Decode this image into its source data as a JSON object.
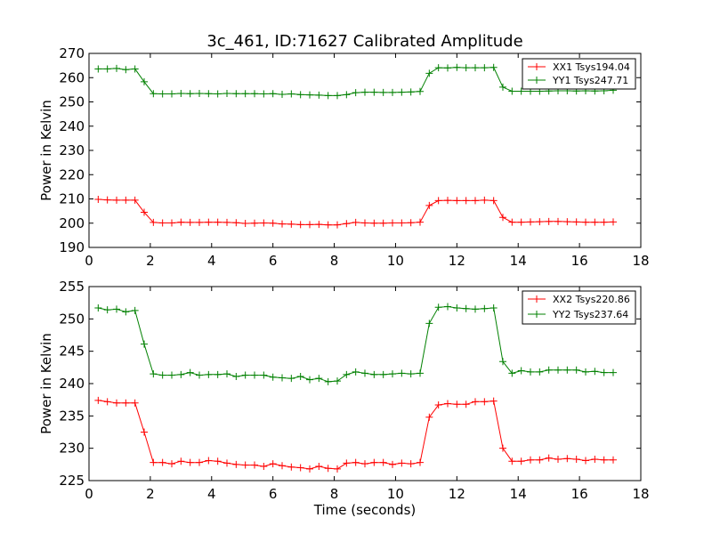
{
  "figure": {
    "title": "3c_461, ID:71627 Calibrated Amplitude"
  },
  "chart_data": [
    {
      "type": "line",
      "title": "3c_461, ID:71627 Calibrated Amplitude",
      "xlabel": "",
      "ylabel": "Power in Kelvin",
      "xlim": [
        0,
        18
      ],
      "ylim": [
        190,
        270
      ],
      "xticks": [
        "0",
        "2",
        "4",
        "6",
        "8",
        "10",
        "12",
        "14",
        "16",
        "18"
      ],
      "yticks": [
        "190",
        "200",
        "210",
        "220",
        "230",
        "240",
        "250",
        "260",
        "270"
      ],
      "grid": false,
      "legend_position": "top-right",
      "x": [
        0.3,
        0.6,
        0.9,
        1.2,
        1.5,
        1.8,
        2.1,
        2.4,
        2.7,
        3.0,
        3.3,
        3.6,
        3.9,
        4.2,
        4.5,
        4.8,
        5.1,
        5.4,
        5.7,
        6.0,
        6.3,
        6.6,
        6.9,
        7.2,
        7.5,
        7.8,
        8.1,
        8.4,
        8.7,
        9.0,
        9.3,
        9.6,
        9.9,
        10.2,
        10.5,
        10.8,
        11.1,
        11.4,
        11.7,
        12.0,
        12.3,
        12.6,
        12.9,
        13.2,
        13.5,
        13.8,
        14.1,
        14.4,
        14.7,
        15.0,
        15.3,
        15.6,
        15.9,
        16.2,
        16.5,
        16.8,
        17.1
      ],
      "series": [
        {
          "name": "XX1 Tsys194.04",
          "color": "#ff0000",
          "marker": "plus",
          "values": [
            209.8,
            209.6,
            209.5,
            209.5,
            209.5,
            204.5,
            200.3,
            200.1,
            200.1,
            200.4,
            200.3,
            200.3,
            200.4,
            200.4,
            200.3,
            200.2,
            199.9,
            200.0,
            200.1,
            200.0,
            199.7,
            199.6,
            199.4,
            199.4,
            199.5,
            199.3,
            199.3,
            199.8,
            200.3,
            200.1,
            200.0,
            200.0,
            200.1,
            200.1,
            200.2,
            200.4,
            207.3,
            209.3,
            209.4,
            209.3,
            209.3,
            209.3,
            209.5,
            209.3,
            202.4,
            200.4,
            200.4,
            200.5,
            200.6,
            200.7,
            200.7,
            200.6,
            200.5,
            200.4,
            200.4,
            200.4,
            200.5
          ]
        },
        {
          "name": "YY1 Tsys247.71",
          "color": "#008000",
          "marker": "plus",
          "values": [
            263.6,
            263.6,
            263.8,
            263.3,
            263.6,
            258.3,
            253.4,
            253.3,
            253.3,
            253.5,
            253.4,
            253.5,
            253.4,
            253.3,
            253.5,
            253.4,
            253.4,
            253.4,
            253.3,
            253.4,
            253.1,
            253.3,
            253.0,
            252.9,
            252.8,
            252.6,
            252.6,
            253.0,
            253.8,
            254.0,
            254.0,
            253.9,
            253.9,
            254.0,
            254.1,
            254.3,
            261.8,
            264.1,
            264.0,
            264.2,
            264.1,
            264.1,
            264.1,
            264.2,
            256.1,
            254.4,
            254.4,
            254.4,
            254.4,
            254.5,
            254.6,
            254.6,
            254.5,
            254.6,
            254.5,
            254.6,
            254.8
          ]
        }
      ]
    },
    {
      "type": "line",
      "title": "",
      "xlabel": "Time (seconds)",
      "ylabel": "Power in Kelvin",
      "xlim": [
        0,
        18
      ],
      "ylim": [
        225,
        255
      ],
      "xticks": [
        "0",
        "2",
        "4",
        "6",
        "8",
        "10",
        "12",
        "14",
        "16",
        "18"
      ],
      "yticks": [
        "225",
        "230",
        "235",
        "240",
        "245",
        "250",
        "255"
      ],
      "grid": false,
      "legend_position": "top-right",
      "x": [
        0.3,
        0.6,
        0.9,
        1.2,
        1.5,
        1.8,
        2.1,
        2.4,
        2.7,
        3.0,
        3.3,
        3.6,
        3.9,
        4.2,
        4.5,
        4.8,
        5.1,
        5.4,
        5.7,
        6.0,
        6.3,
        6.6,
        6.9,
        7.2,
        7.5,
        7.8,
        8.1,
        8.4,
        8.7,
        9.0,
        9.3,
        9.6,
        9.9,
        10.2,
        10.5,
        10.8,
        11.1,
        11.4,
        11.7,
        12.0,
        12.3,
        12.6,
        12.9,
        13.2,
        13.5,
        13.8,
        14.1,
        14.4,
        14.7,
        15.0,
        15.3,
        15.6,
        15.9,
        16.2,
        16.5,
        16.8,
        17.1
      ],
      "series": [
        {
          "name": "XX2 Tsys220.86",
          "color": "#ff0000",
          "marker": "plus",
          "values": [
            237.4,
            237.2,
            237.0,
            237.0,
            237.0,
            232.5,
            227.8,
            227.8,
            227.6,
            228.0,
            227.8,
            227.8,
            228.1,
            228.0,
            227.7,
            227.5,
            227.4,
            227.4,
            227.2,
            227.6,
            227.3,
            227.1,
            227.0,
            226.8,
            227.2,
            226.9,
            226.8,
            227.7,
            227.8,
            227.6,
            227.8,
            227.8,
            227.5,
            227.7,
            227.6,
            227.8,
            234.8,
            236.7,
            236.9,
            236.8,
            236.8,
            237.2,
            237.2,
            237.3,
            230.0,
            228.0,
            228.0,
            228.2,
            228.2,
            228.5,
            228.3,
            228.4,
            228.3,
            228.1,
            228.3,
            228.2,
            228.2
          ]
        },
        {
          "name": "YY2 Tsys237.64",
          "color": "#008000",
          "marker": "plus",
          "values": [
            251.7,
            251.4,
            251.5,
            251.1,
            251.3,
            246.1,
            241.5,
            241.3,
            241.3,
            241.4,
            241.7,
            241.3,
            241.4,
            241.4,
            241.5,
            241.1,
            241.3,
            241.3,
            241.3,
            241.0,
            240.9,
            240.8,
            241.1,
            240.6,
            240.8,
            240.3,
            240.4,
            241.4,
            241.8,
            241.6,
            241.4,
            241.4,
            241.5,
            241.6,
            241.5,
            241.6,
            249.3,
            251.8,
            251.9,
            251.7,
            251.6,
            251.5,
            251.6,
            251.7,
            243.4,
            241.6,
            242.0,
            241.8,
            241.8,
            242.1,
            242.1,
            242.1,
            242.1,
            241.8,
            241.9,
            241.7,
            241.7
          ]
        }
      ]
    }
  ]
}
